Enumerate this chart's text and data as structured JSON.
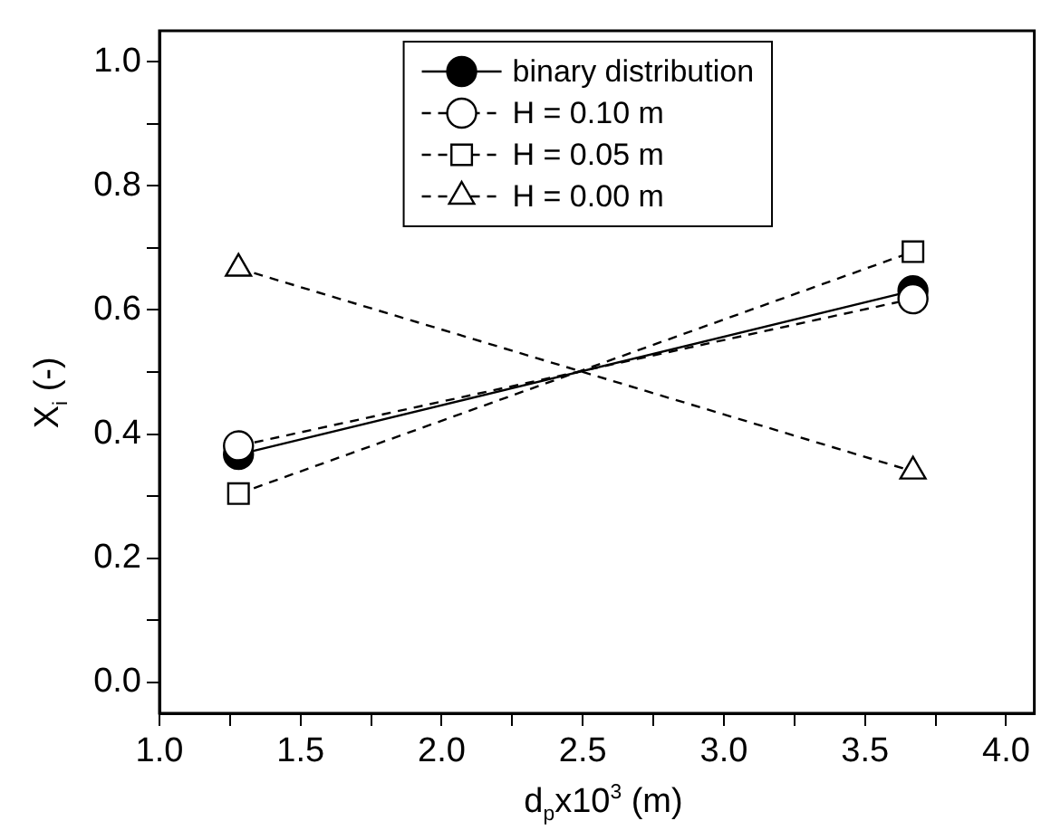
{
  "chart_data": {
    "type": "line",
    "xlabel": "d$_{p}$x10$^{3}$ (m)",
    "ylabel": "X$_{i}$ (-)",
    "xlim": [
      1.0,
      4.1
    ],
    "ylim": [
      -0.05,
      1.05
    ],
    "xticks": [
      {
        "value": 1.0,
        "label": "1.0"
      },
      {
        "value": 1.25,
        "label": null
      },
      {
        "value": 1.5,
        "label": "1.5"
      },
      {
        "value": 1.75,
        "label": null
      },
      {
        "value": 2.0,
        "label": "2.0"
      },
      {
        "value": 2.25,
        "label": null
      },
      {
        "value": 2.5,
        "label": "2.5"
      },
      {
        "value": 2.75,
        "label": null
      },
      {
        "value": 3.0,
        "label": "3.0"
      },
      {
        "value": 3.25,
        "label": null
      },
      {
        "value": 3.5,
        "label": "3.5"
      },
      {
        "value": 3.75,
        "label": null
      },
      {
        "value": 4.0,
        "label": "4.0"
      }
    ],
    "yticks": [
      {
        "value": 0.0,
        "label": "0.0"
      },
      {
        "value": 0.1,
        "label": null
      },
      {
        "value": 0.2,
        "label": "0.2"
      },
      {
        "value": 0.3,
        "label": null
      },
      {
        "value": 0.4,
        "label": "0.4"
      },
      {
        "value": 0.5,
        "label": null
      },
      {
        "value": 0.6,
        "label": "0.6"
      },
      {
        "value": 0.7,
        "label": null
      },
      {
        "value": 0.8,
        "label": "0.8"
      },
      {
        "value": 0.9,
        "label": null
      },
      {
        "value": 1.0,
        "label": "1.0"
      }
    ],
    "x": [
      1.28,
      3.67
    ],
    "grid": false,
    "legend": "top",
    "series": [
      {
        "name": "binary distribution",
        "color": "#000000",
        "marker": "circle",
        "line_style": "solid",
        "values": [
          0.367,
          0.631
        ]
      },
      {
        "name": "H = 0.10 m",
        "color": "#000000",
        "marker": "circle",
        "line_style": "dashed",
        "values": [
          0.381,
          0.618
        ]
      },
      {
        "name": "H = 0.05 m",
        "color": "#000000",
        "marker": "square",
        "line_style": "dashed",
        "values": [
          0.304,
          0.694
        ]
      },
      {
        "name": "H = 0.00 m",
        "color": "#000000",
        "marker": "triangle",
        "line_style": "dashed",
        "values": [
          0.667,
          0.34
        ]
      }
    ]
  }
}
